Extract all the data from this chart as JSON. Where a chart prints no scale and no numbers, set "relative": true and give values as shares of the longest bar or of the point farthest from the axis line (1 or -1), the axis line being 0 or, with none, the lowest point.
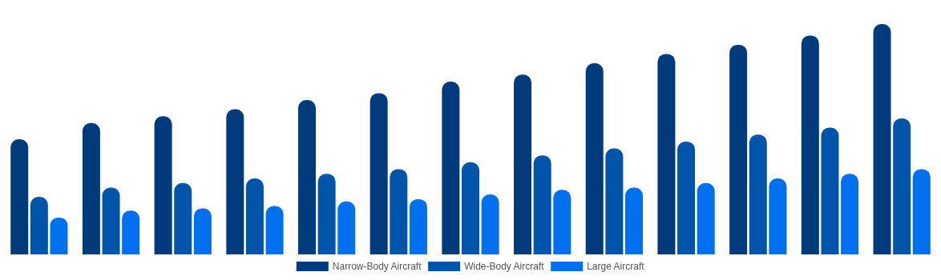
{
  "chart_data": {
    "type": "bar",
    "relative": true,
    "legend": "bottom",
    "categories": [
      null,
      null,
      null,
      null,
      null,
      null,
      null,
      null,
      null,
      null,
      null,
      null,
      null
    ],
    "series": [
      {
        "name": "Narrow-Body Aircraft",
        "color": "#023b7c",
        "values": [
          0.5,
          0.57,
          0.6,
          0.63,
          0.67,
          0.7,
          0.75,
          0.78,
          0.83,
          0.87,
          0.91,
          0.95,
          1
        ]
      },
      {
        "name": "Wide-Body Aircraft",
        "color": "#0055ab",
        "values": [
          0.25,
          0.29,
          0.31,
          0.33,
          0.35,
          0.37,
          0.4,
          0.43,
          0.46,
          0.49,
          0.52,
          0.55,
          0.59
        ]
      },
      {
        "name": "Large Aircraft",
        "color": "#0070ee",
        "values": [
          0.16,
          0.19,
          0.2,
          0.21,
          0.23,
          0.24,
          0.26,
          0.28,
          0.29,
          0.31,
          0.33,
          0.35,
          0.37
        ]
      }
    ]
  }
}
